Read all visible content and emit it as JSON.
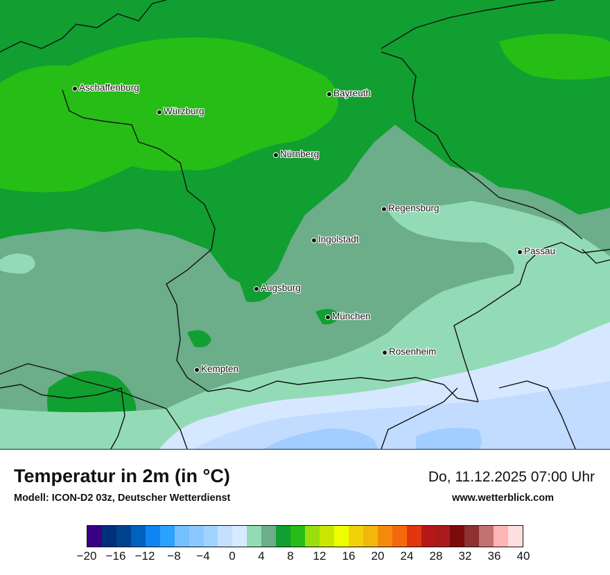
{
  "map": {
    "cities": [
      {
        "name": "Aschaffenburg"
      },
      {
        "name": "Würzburg"
      },
      {
        "name": "Bayreuth"
      },
      {
        "name": "Nürnberg"
      },
      {
        "name": "Regensburg"
      },
      {
        "name": "Ingolstadt"
      },
      {
        "name": "Passau"
      },
      {
        "name": "Augsburg"
      },
      {
        "name": "München"
      },
      {
        "name": "Rosenheim"
      },
      {
        "name": "Kempten"
      }
    ],
    "field_colors": {
      "temp_4_6": "#6cad8a",
      "temp_2_4": "#93dbb6",
      "temp_0_2": "#d6e8ff",
      "temp_m2_0": "#c2dcff",
      "temp_m4_m2": "#a2cdff",
      "temp_6_8": "#109f30",
      "temp_8_10": "#25bd16"
    }
  },
  "legend": {
    "title": "Temperatur in 2m (in °C)",
    "subtitle": "Modell: ICON-D2 03z, Deutscher Wetterdienst",
    "datetime": "Do, 11.12.2025 07:00 Uhr",
    "website": "www.wetterblick.com",
    "scale_colors": [
      "#3a0083",
      "#00307a",
      "#00428e",
      "#0062be",
      "#0e86f2",
      "#2ba2ff",
      "#75bfff",
      "#8cc8ff",
      "#a2d2ff",
      "#c3e0ff",
      "#d7eaff",
      "#93dbb6",
      "#6cad8a",
      "#109f30",
      "#25bd16",
      "#9ade0e",
      "#cbe700",
      "#eeff00",
      "#f3d10a",
      "#f3b70c",
      "#f38a0c",
      "#f3690c",
      "#e23610",
      "#b61815",
      "#aa1a1d",
      "#7c0b0b",
      "#8d3131",
      "#c47171",
      "#ffb4b4",
      "#ffdede"
    ],
    "ticks": [
      "−20",
      "−16",
      "−12",
      "−8",
      "−4",
      "0",
      "4",
      "8",
      "12",
      "16",
      "20",
      "24",
      "28",
      "32",
      "36",
      "40"
    ]
  }
}
